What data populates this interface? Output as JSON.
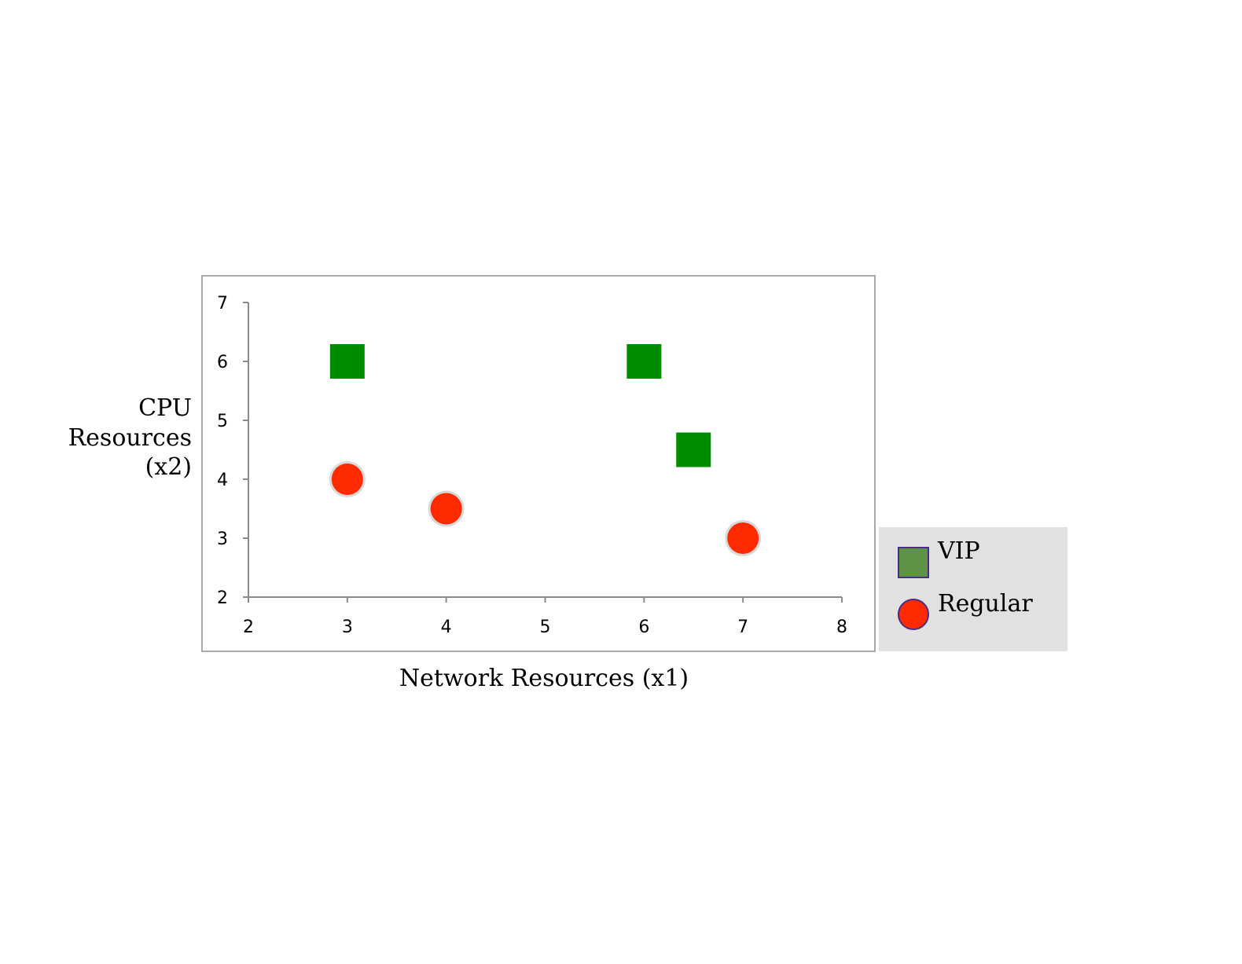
{
  "chart_data": {
    "type": "scatter",
    "title": "",
    "xlabel": "Network Resources (x1)",
    "ylabel_lines": [
      "CPU",
      "Resources",
      "(x2)"
    ],
    "xlim": [
      2,
      8
    ],
    "ylim": [
      2,
      7
    ],
    "xticks": [
      "2",
      "3",
      "4",
      "5",
      "6",
      "7",
      "8"
    ],
    "yticks": [
      "2",
      "3",
      "4",
      "5",
      "6",
      "7"
    ],
    "grid": false,
    "legend_placement": "bottom-right-outside",
    "series": [
      {
        "name": "VIP",
        "marker": "square",
        "color": "#008c00",
        "legend_color": "#5f9447",
        "legend_border": "#4b2e83",
        "points": [
          {
            "x": 3,
            "y": 6
          },
          {
            "x": 6,
            "y": 6
          },
          {
            "x": 6.5,
            "y": 4.5
          }
        ]
      },
      {
        "name": "Regular",
        "marker": "circle",
        "color": "#ff2a00",
        "legend_color": "#ff2a00",
        "legend_border": "#4b2e83",
        "points": [
          {
            "x": 3,
            "y": 4
          },
          {
            "x": 4,
            "y": 3.5
          },
          {
            "x": 7,
            "y": 3
          }
        ]
      }
    ]
  }
}
